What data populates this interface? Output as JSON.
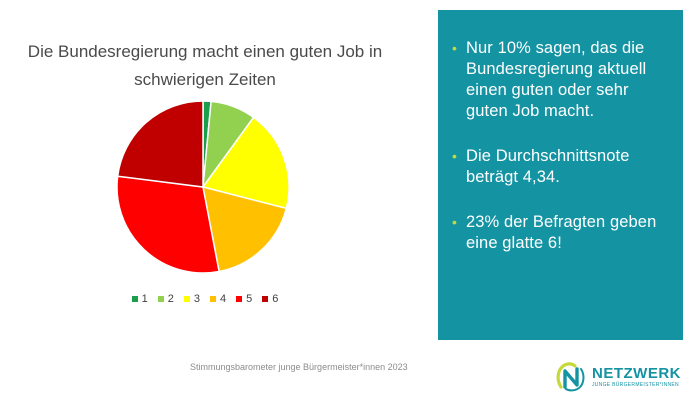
{
  "chart_data": {
    "type": "pie",
    "title": "Die Bundesregierung macht einen guten Job in schwierigen Zeiten",
    "title_lines": [
      "Die Bundesregierung macht einen guten Job in",
      "schwierigen Zeiten"
    ],
    "categories": [
      "1",
      "2",
      "3",
      "4",
      "5",
      "6"
    ],
    "values": [
      1.5,
      8.5,
      19,
      18,
      30,
      23
    ],
    "colors": [
      "#1a9e4b",
      "#92d050",
      "#ffff00",
      "#ffc000",
      "#ff0000",
      "#c00000"
    ],
    "legend_position": "bottom"
  },
  "panel": {
    "bullets": [
      "Nur 10% sagen, das die Bundesregierung aktuell einen guten oder sehr guten Job macht.",
      "Die Durchschnittsnote beträgt 4,34.",
      "23% der Befragten geben eine glatte 6!"
    ],
    "background": "#1493a3",
    "bullet_color": "#c6d93a"
  },
  "footer": {
    "source": "Stimmungsbarometer junge Bürgermeister*innen 2023"
  },
  "logo": {
    "name": "NETZWERK",
    "subtitle": "JUNGE BÜRGERMEISTER*INNEN",
    "icon": "netzwerk-n-logo-icon"
  }
}
